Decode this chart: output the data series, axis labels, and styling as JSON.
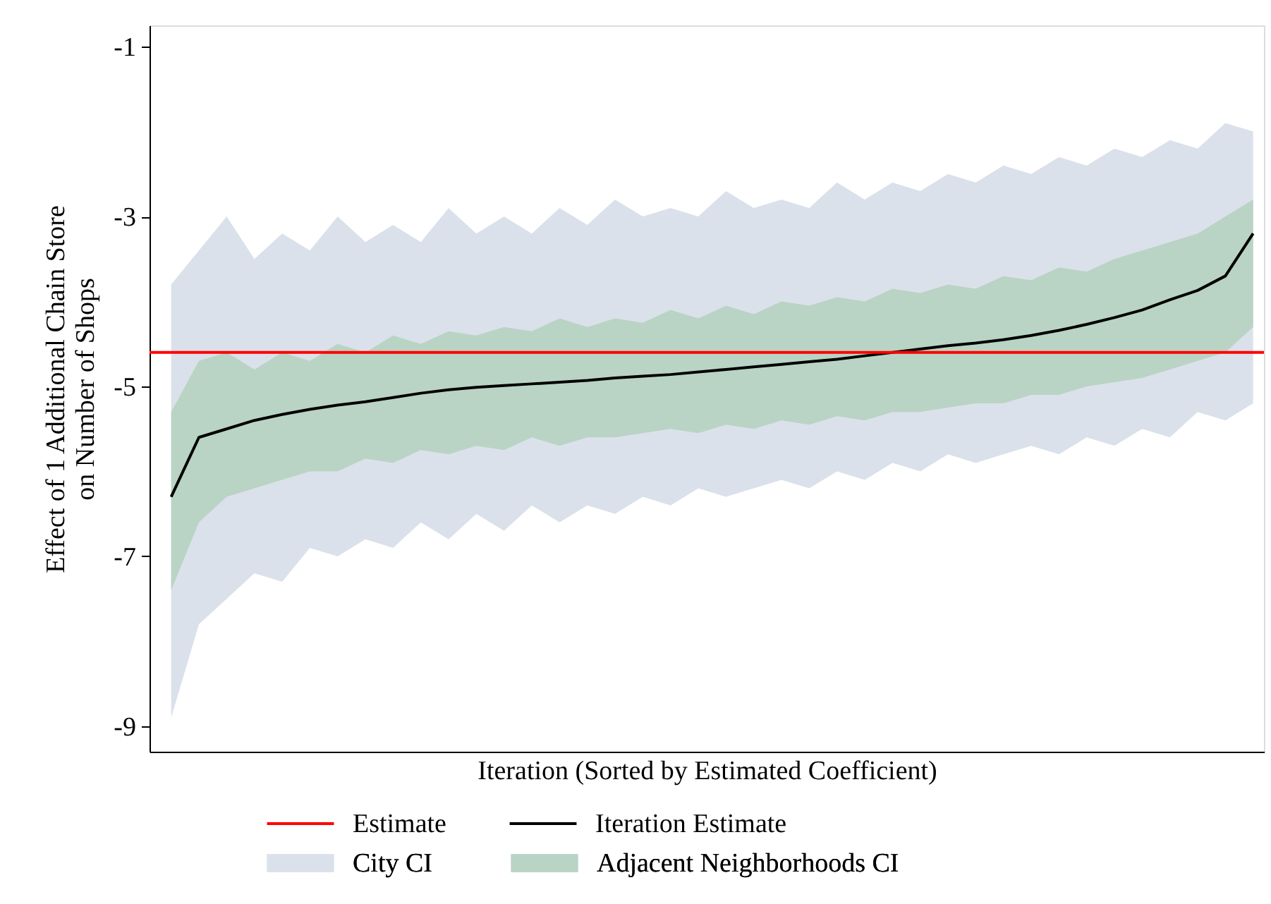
{
  "chart_data": {
    "type": "line",
    "xlabel": "Iteration (Sorted by Estimated Coefficient)",
    "ylabel": "Effect of 1 Additional Chain Store\non Number of Shops",
    "categories": [
      null,
      null,
      null,
      null,
      null,
      null,
      null,
      null,
      null,
      null,
      null,
      null,
      null,
      null,
      null,
      null,
      null,
      null,
      null,
      null,
      null,
      null,
      null,
      null,
      null,
      null,
      null,
      null,
      null,
      null,
      null,
      null,
      null,
      null,
      null,
      null,
      null,
      null,
      null,
      null
    ],
    "ylim": [
      -9.3,
      -0.75
    ],
    "yticks": [
      -1,
      -3,
      -5,
      -7,
      -9
    ],
    "grid": false,
    "legend": "bottom",
    "tick_labels": "y",
    "series": [
      {
        "name": "City CI",
        "type": "area",
        "color": "#dbe1ea",
        "values": [
          null,
          null,
          null,
          null,
          null,
          null,
          null,
          null,
          null,
          null,
          null,
          null,
          null,
          null,
          null,
          null,
          null,
          null,
          null,
          null,
          null,
          null,
          null,
          null,
          null,
          null,
          null,
          null,
          null,
          null,
          null,
          null,
          null,
          null,
          null,
          null,
          null,
          null,
          null,
          null
        ],
        "lower": [
          -8.9,
          -7.8,
          -7.5,
          -7.2,
          -7.3,
          -6.9,
          -7.0,
          -6.8,
          -6.9,
          -6.6,
          -6.8,
          -6.5,
          -6.7,
          -6.4,
          -6.6,
          -6.4,
          -6.5,
          -6.3,
          -6.4,
          -6.2,
          -6.3,
          -6.2,
          -6.1,
          -6.2,
          -6.0,
          -6.1,
          -5.9,
          -6.0,
          -5.8,
          -5.9,
          -5.8,
          -5.7,
          -5.8,
          -5.6,
          -5.7,
          -5.5,
          -5.6,
          -5.3,
          -5.4,
          -5.2
        ],
        "upper": [
          -3.8,
          -3.4,
          -3.0,
          -3.5,
          -3.2,
          -3.4,
          -3.0,
          -3.3,
          -3.1,
          -3.3,
          -2.9,
          -3.2,
          -3.0,
          -3.2,
          -2.9,
          -3.1,
          -2.8,
          -3.0,
          -2.9,
          -3.0,
          -2.7,
          -2.9,
          -2.8,
          -2.9,
          -2.6,
          -2.8,
          -2.6,
          -2.7,
          -2.5,
          -2.6,
          -2.4,
          -2.5,
          -2.3,
          -2.4,
          -2.2,
          -2.3,
          -2.1,
          -2.2,
          -1.9,
          -2.0
        ]
      },
      {
        "name": "Adjacent Neighborhoods CI",
        "type": "area",
        "color": "#b9d4c4",
        "values": [
          null,
          null,
          null,
          null,
          null,
          null,
          null,
          null,
          null,
          null,
          null,
          null,
          null,
          null,
          null,
          null,
          null,
          null,
          null,
          null,
          null,
          null,
          null,
          null,
          null,
          null,
          null,
          null,
          null,
          null,
          null,
          null,
          null,
          null,
          null,
          null,
          null,
          null,
          null,
          null
        ],
        "lower": [
          -7.4,
          -6.6,
          -6.3,
          -6.2,
          -6.1,
          -6.0,
          -6.0,
          -5.85,
          -5.9,
          -5.75,
          -5.8,
          -5.7,
          -5.75,
          -5.6,
          -5.7,
          -5.6,
          -5.6,
          -5.55,
          -5.5,
          -5.55,
          -5.45,
          -5.5,
          -5.4,
          -5.45,
          -5.35,
          -5.4,
          -5.3,
          -5.3,
          -5.25,
          -5.2,
          -5.2,
          -5.1,
          -5.1,
          -5.0,
          -4.95,
          -4.9,
          -4.8,
          -4.7,
          -4.6,
          -4.3
        ],
        "upper": [
          -5.3,
          -4.7,
          -4.6,
          -4.8,
          -4.6,
          -4.7,
          -4.5,
          -4.6,
          -4.4,
          -4.5,
          -4.35,
          -4.4,
          -4.3,
          -4.35,
          -4.2,
          -4.3,
          -4.2,
          -4.25,
          -4.1,
          -4.2,
          -4.05,
          -4.15,
          -4.0,
          -4.05,
          -3.95,
          -4.0,
          -3.85,
          -3.9,
          -3.8,
          -3.85,
          -3.7,
          -3.75,
          -3.6,
          -3.65,
          -3.5,
          -3.4,
          -3.3,
          -3.2,
          -3.0,
          -2.8
        ]
      },
      {
        "name": "Iteration Estimate",
        "color": "#000000",
        "values": [
          -6.3,
          -5.6,
          -5.5,
          -5.4,
          -5.33,
          -5.27,
          -5.22,
          -5.18,
          -5.13,
          -5.08,
          -5.04,
          -5.01,
          -4.99,
          -4.97,
          -4.95,
          -4.93,
          -4.9,
          -4.88,
          -4.86,
          -4.83,
          -4.8,
          -4.77,
          -4.74,
          -4.71,
          -4.68,
          -4.64,
          -4.6,
          -4.56,
          -4.52,
          -4.49,
          -4.45,
          -4.4,
          -4.34,
          -4.27,
          -4.19,
          -4.1,
          -3.98,
          -3.87,
          -3.7,
          -3.2
        ]
      }
    ],
    "ref_lines": [
      {
        "axis": "y",
        "value": -4.6,
        "label": "Estimate",
        "color": "#ff0000"
      }
    ]
  }
}
